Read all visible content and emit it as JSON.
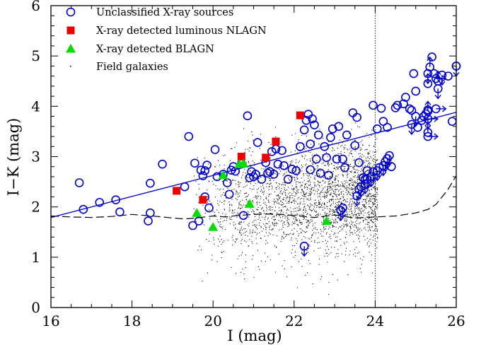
{
  "chart_data": {
    "type": "scatter",
    "xlabel": "I (mag)",
    "ylabel": "I−K (mag)",
    "xlim": [
      16,
      26
    ],
    "ylim": [
      0,
      6
    ],
    "x_ticks": [
      16,
      18,
      20,
      22,
      24,
      26
    ],
    "y_ticks": [
      0,
      1,
      2,
      3,
      4,
      5,
      6
    ],
    "legend_position": "top-left",
    "colors": {
      "unclassified": "#0000cc",
      "nlagn": "#ee0000",
      "blagn": "#00dd00",
      "field": "#000000",
      "fit_line": "#0000cc",
      "curve": "#000000"
    },
    "series": [
      {
        "name": "Unclassified X-ray sources",
        "marker": "open-circle",
        "points": [
          [
            16.7,
            2.48
          ],
          [
            16.8,
            1.95
          ],
          [
            17.2,
            2.09
          ],
          [
            17.6,
            2.14
          ],
          [
            17.7,
            1.9
          ],
          [
            18.4,
            1.72
          ],
          [
            18.45,
            1.88
          ],
          [
            18.45,
            2.47
          ],
          [
            18.75,
            2.85
          ],
          [
            19.3,
            2.4
          ],
          [
            19.4,
            3.4
          ],
          [
            19.5,
            1.63
          ],
          [
            19.55,
            2.87
          ],
          [
            19.65,
            1.72
          ],
          [
            19.7,
            2.73
          ],
          [
            19.75,
            2.62
          ],
          [
            19.8,
            2.72
          ],
          [
            19.8,
            2.2
          ],
          [
            19.85,
            2.83
          ],
          [
            19.9,
            1.98
          ],
          [
            20.05,
            3.14
          ],
          [
            20.1,
            2.6
          ],
          [
            20.25,
            2.65
          ],
          [
            20.35,
            2.48
          ],
          [
            20.4,
            2.25
          ],
          [
            20.45,
            2.73
          ],
          [
            20.5,
            2.8
          ],
          [
            20.55,
            2.71
          ],
          [
            20.7,
            2.86
          ],
          [
            20.75,
            1.83
          ],
          [
            20.85,
            3.81
          ],
          [
            20.9,
            2.58
          ],
          [
            20.95,
            2.7
          ],
          [
            21.0,
            2.6
          ],
          [
            21.05,
            2.65
          ],
          [
            21.1,
            3.28
          ],
          [
            21.2,
            2.55
          ],
          [
            21.3,
            2.88
          ],
          [
            21.35,
            2.67
          ],
          [
            21.4,
            2.7
          ],
          [
            21.45,
            3.1
          ],
          [
            21.5,
            2.65
          ],
          [
            21.55,
            3.15
          ],
          [
            21.6,
            2.85
          ],
          [
            21.7,
            3.12
          ],
          [
            21.75,
            2.82
          ],
          [
            21.85,
            2.55
          ],
          [
            21.95,
            2.75
          ],
          [
            22.05,
            2.72
          ],
          [
            22.15,
            3.2
          ],
          [
            22.25,
            3.53
          ],
          [
            22.3,
            3.72
          ],
          [
            22.35,
            3.84
          ],
          [
            22.4,
            3.25
          ],
          [
            22.4,
            2.74
          ],
          [
            22.45,
            3.75
          ],
          [
            22.5,
            3.63
          ],
          [
            22.55,
            2.95
          ],
          [
            22.6,
            3.43
          ],
          [
            22.65,
            2.67
          ],
          [
            22.75,
            3.2
          ],
          [
            22.8,
            2.98
          ],
          [
            22.85,
            2.63
          ],
          [
            22.9,
            3.38
          ],
          [
            22.95,
            3.55
          ],
          [
            23.05,
            2.95
          ],
          [
            23.1,
            3.6
          ],
          [
            23.15,
            1.93
          ],
          [
            23.2,
            2.95
          ],
          [
            23.25,
            2.78
          ],
          [
            23.3,
            3.43
          ],
          [
            23.45,
            3.87
          ],
          [
            23.5,
            3.22
          ],
          [
            23.55,
            3.78
          ],
          [
            23.6,
            2.88
          ],
          [
            23.7,
            2.58
          ],
          [
            23.75,
            2.55
          ],
          [
            23.8,
            2.72
          ],
          [
            23.95,
            4.02
          ],
          [
            24.05,
            3.55
          ],
          [
            24.15,
            3.96
          ],
          [
            24.2,
            3.7
          ],
          [
            24.3,
            3.58
          ],
          [
            24.4,
            2.8
          ],
          [
            24.5,
            3.97
          ],
          [
            24.55,
            4.02
          ],
          [
            24.7,
            4.05
          ],
          [
            24.75,
            4.18
          ],
          [
            24.85,
            3.95
          ],
          [
            24.9,
            3.92
          ],
          [
            24.95,
            4.65
          ],
          [
            25.0,
            4.3
          ],
          [
            25.05,
            3.58
          ],
          [
            25.15,
            3.72
          ],
          [
            25.2,
            3.8
          ],
          [
            25.25,
            3.85
          ],
          [
            25.3,
            3.93
          ],
          [
            25.4,
            4.98
          ],
          [
            25.45,
            4.65
          ],
          [
            25.8,
            4.6
          ],
          [
            26.0,
            4.8
          ],
          [
            25.9,
            3.7
          ]
        ]
      },
      {
        "name": "X-ray detected luminous NLAGN",
        "marker": "filled-square",
        "points": [
          [
            19.1,
            2.32
          ],
          [
            19.75,
            2.14
          ],
          [
            20.7,
            3.0
          ],
          [
            21.3,
            2.98
          ],
          [
            21.55,
            3.3
          ],
          [
            22.15,
            3.82
          ]
        ]
      },
      {
        "name": "X-ray detected BLAGN",
        "marker": "filled-triangle",
        "points": [
          [
            19.6,
            1.88
          ],
          [
            20.0,
            1.6
          ],
          [
            20.25,
            2.63
          ],
          [
            20.65,
            2.85
          ],
          [
            20.75,
            2.86
          ],
          [
            20.9,
            2.06
          ],
          [
            22.8,
            1.72
          ]
        ]
      },
      {
        "name": "Field galaxies",
        "marker": "dot"
      }
    ],
    "upper_limits": [
      [
        22.25,
        1.22
      ],
      [
        23.15,
        1.93
      ],
      [
        23.2,
        1.98
      ],
      [
        23.55,
        2.22
      ],
      [
        23.6,
        2.35
      ],
      [
        23.65,
        2.4
      ],
      [
        23.75,
        2.46
      ],
      [
        23.8,
        2.55
      ],
      [
        23.9,
        2.6
      ],
      [
        23.95,
        2.7
      ],
      [
        24.05,
        2.72
      ],
      [
        24.1,
        2.78
      ],
      [
        24.2,
        2.82
      ],
      [
        24.25,
        2.9
      ],
      [
        24.3,
        2.96
      ],
      [
        24.35,
        3.02
      ],
      [
        24.9,
        3.64
      ],
      [
        25.0,
        3.8
      ],
      [
        25.3,
        3.75
      ],
      [
        25.3,
        4.65
      ],
      [
        25.55,
        4.35
      ],
      [
        25.65,
        4.62
      ],
      [
        26.0,
        4.8
      ]
    ],
    "lower_limits": [
      [
        25.3,
        3.9
      ],
      [
        25.3,
        4.45
      ],
      [
        25.3,
        3.48
      ],
      [
        25.35,
        4.78
      ],
      [
        25.55,
        4.5
      ]
    ],
    "right_arrows": [
      [
        25.3,
        3.4
      ],
      [
        25.3,
        3.75
      ],
      [
        25.5,
        3.95
      ],
      [
        25.5,
        4.55
      ]
    ],
    "fit_line": {
      "x": [
        16,
        26
      ],
      "y": [
        1.79,
        3.88
      ]
    },
    "dashed_curve": {
      "x": [
        16,
        16.5,
        17,
        17.5,
        18,
        18.5,
        19,
        19.3,
        19.6,
        20,
        20.3,
        20.6,
        21,
        21.5,
        22,
        22.5,
        23,
        23.5,
        24,
        24.5,
        25,
        25.3,
        25.5,
        25.8,
        26
      ],
      "y": [
        1.82,
        1.8,
        1.79,
        1.81,
        1.85,
        1.82,
        1.78,
        1.76,
        1.78,
        1.82,
        1.8,
        1.83,
        1.85,
        1.86,
        1.83,
        1.79,
        1.84,
        1.78,
        1.8,
        1.82,
        1.88,
        1.95,
        2.05,
        2.35,
        2.62
      ]
    },
    "vline_x": 24
  }
}
